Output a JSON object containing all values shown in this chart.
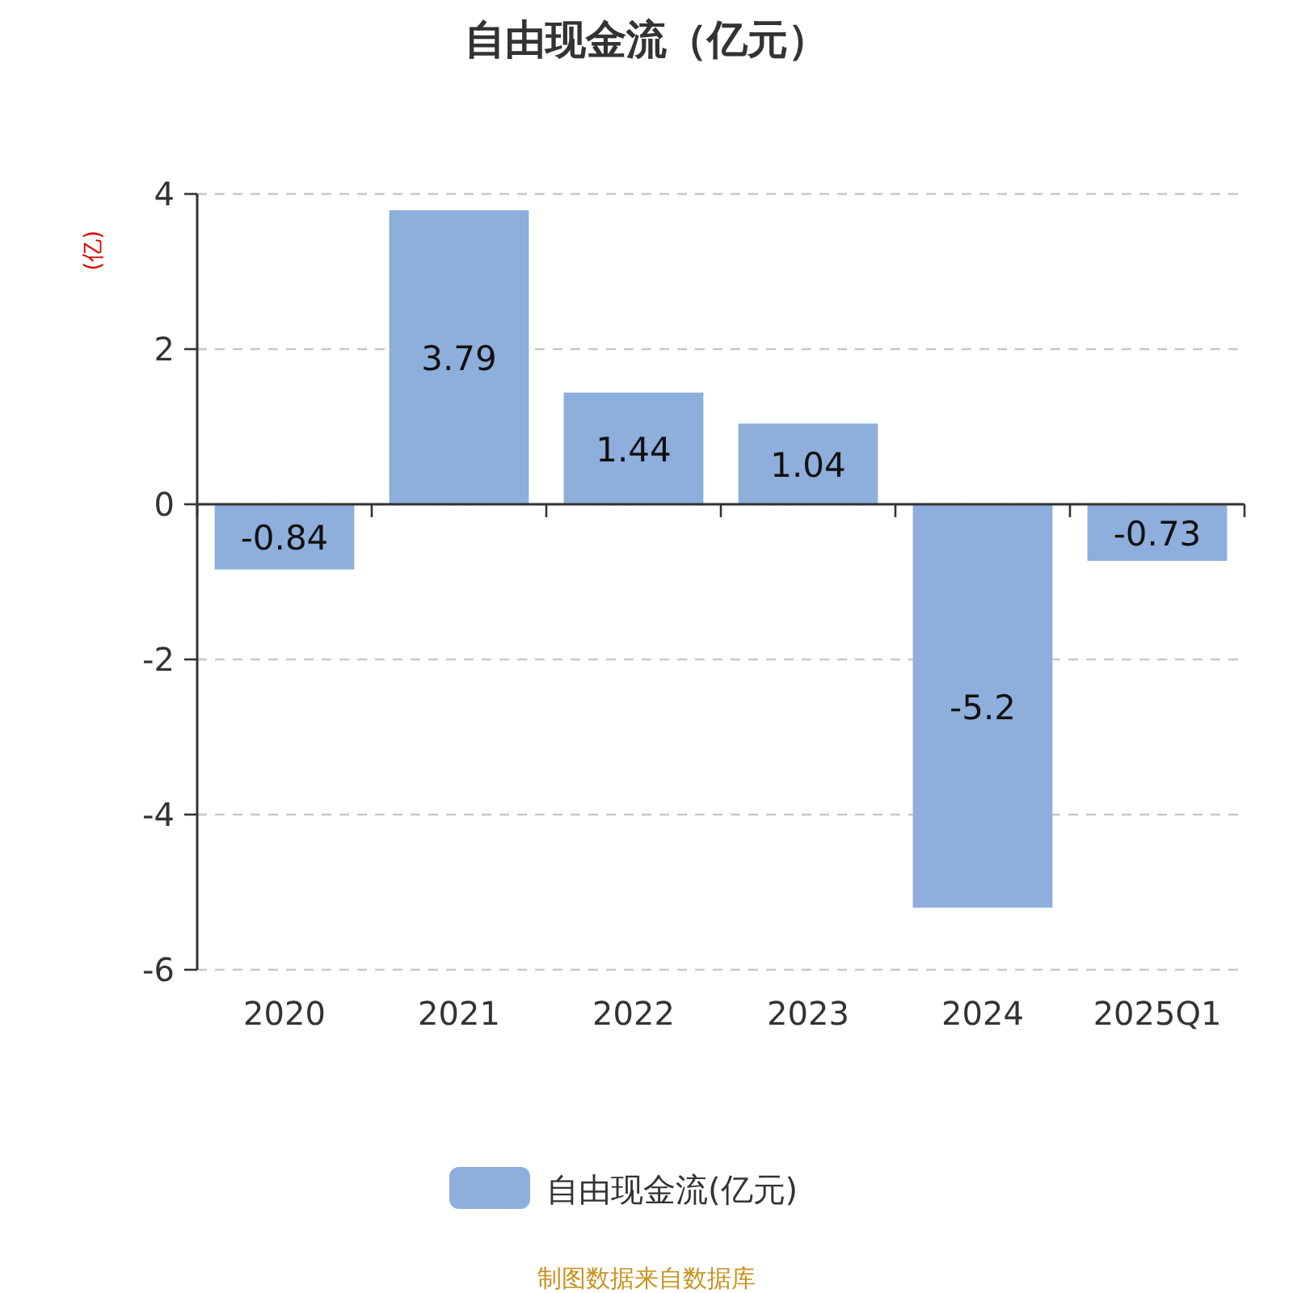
{
  "chart_data": {
    "type": "bar",
    "title": "自由现金流（亿元）",
    "ylabel": "(亿)",
    "categories": [
      "2020",
      "2021",
      "2022",
      "2023",
      "2024",
      "2025Q1"
    ],
    "series": [
      {
        "name": "自由现金流(亿元)",
        "color": "#8eaedb",
        "values": [
          -0.84,
          3.79,
          1.44,
          1.04,
          -5.2,
          -0.73
        ]
      }
    ],
    "ylim": [
      -6,
      4
    ],
    "yticks": [
      -6,
      -4,
      -2,
      0,
      2,
      4
    ],
    "grid": "y",
    "legend": "bottom",
    "data_labels": true,
    "annotations": [
      "制图数据来自数据库"
    ]
  }
}
